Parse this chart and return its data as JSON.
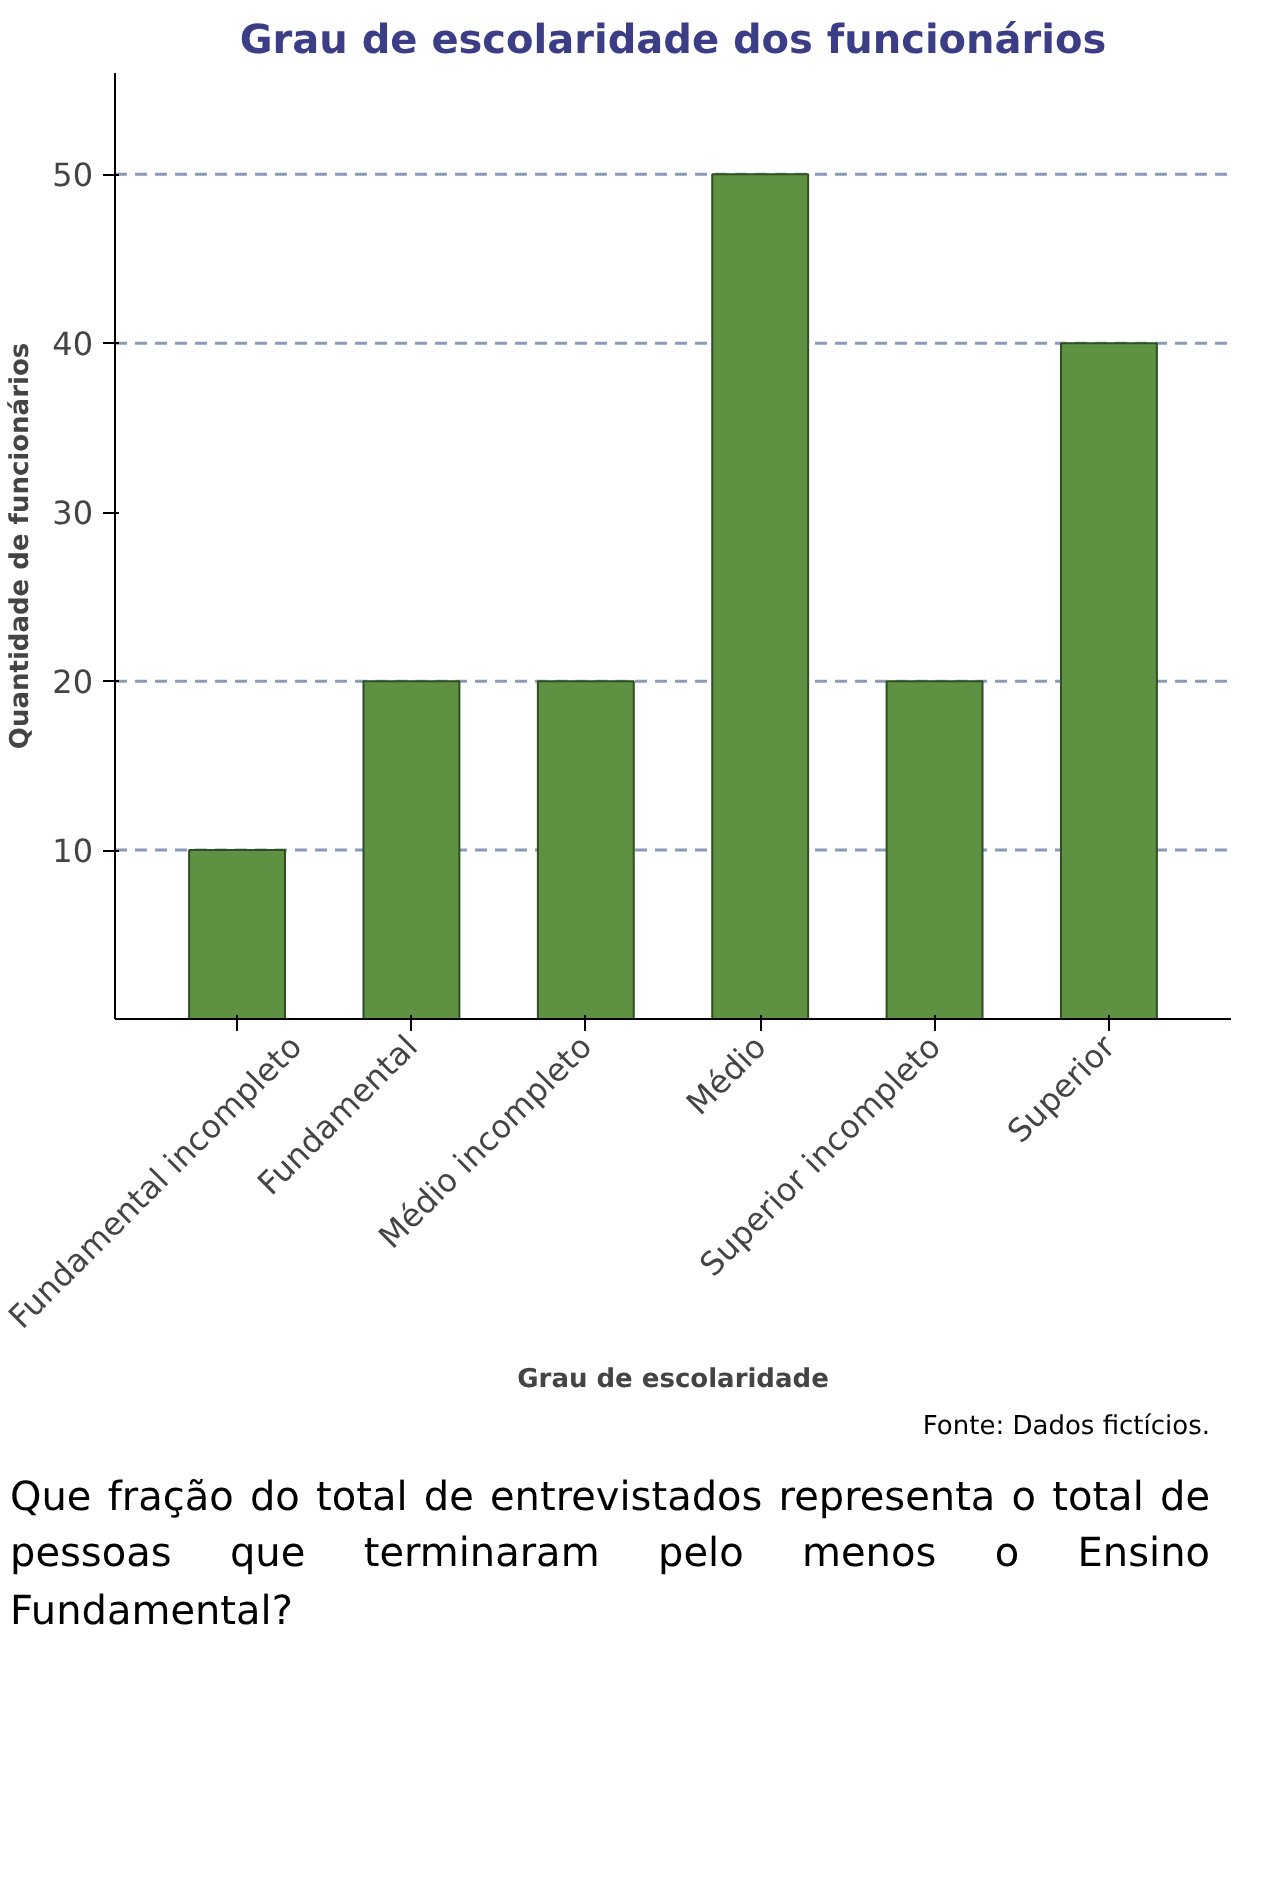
{
  "chart_data": {
    "type": "bar",
    "title": "Grau de escolaridade dos funcionários",
    "ylabel": "Quantidade de funcionários",
    "xlabel": "Grau de escolaridade",
    "categories": [
      "Fundamental incompleto",
      "Fundamental",
      "Médio incompleto",
      "Médio",
      "Superior incompleto",
      "Superior"
    ],
    "values": [
      10,
      20,
      20,
      50,
      20,
      40
    ],
    "color": "#5e9142",
    "ylim": [
      0,
      56
    ],
    "yticks": [
      10,
      20,
      30,
      40,
      50
    ],
    "ref_lines": [
      {
        "axis": "y",
        "value": 10,
        "line_style": "dashed",
        "color": "#8a9ab8"
      },
      {
        "axis": "y",
        "value": 20,
        "line_style": "dashed",
        "color": "#8a9ab8"
      },
      {
        "axis": "y",
        "value": 40,
        "line_style": "dashed",
        "color": "#8a9ab8"
      },
      {
        "axis": "y",
        "value": 50,
        "line_style": "dashed",
        "color": "#8a9ab8"
      }
    ],
    "grid": false,
    "annotations": [
      "Fonte: Dados fictícios.",
      "Que fração do total de entrevistados representa o total de pessoas que terminaram pelo menos o Ensino Fundamental?"
    ]
  }
}
